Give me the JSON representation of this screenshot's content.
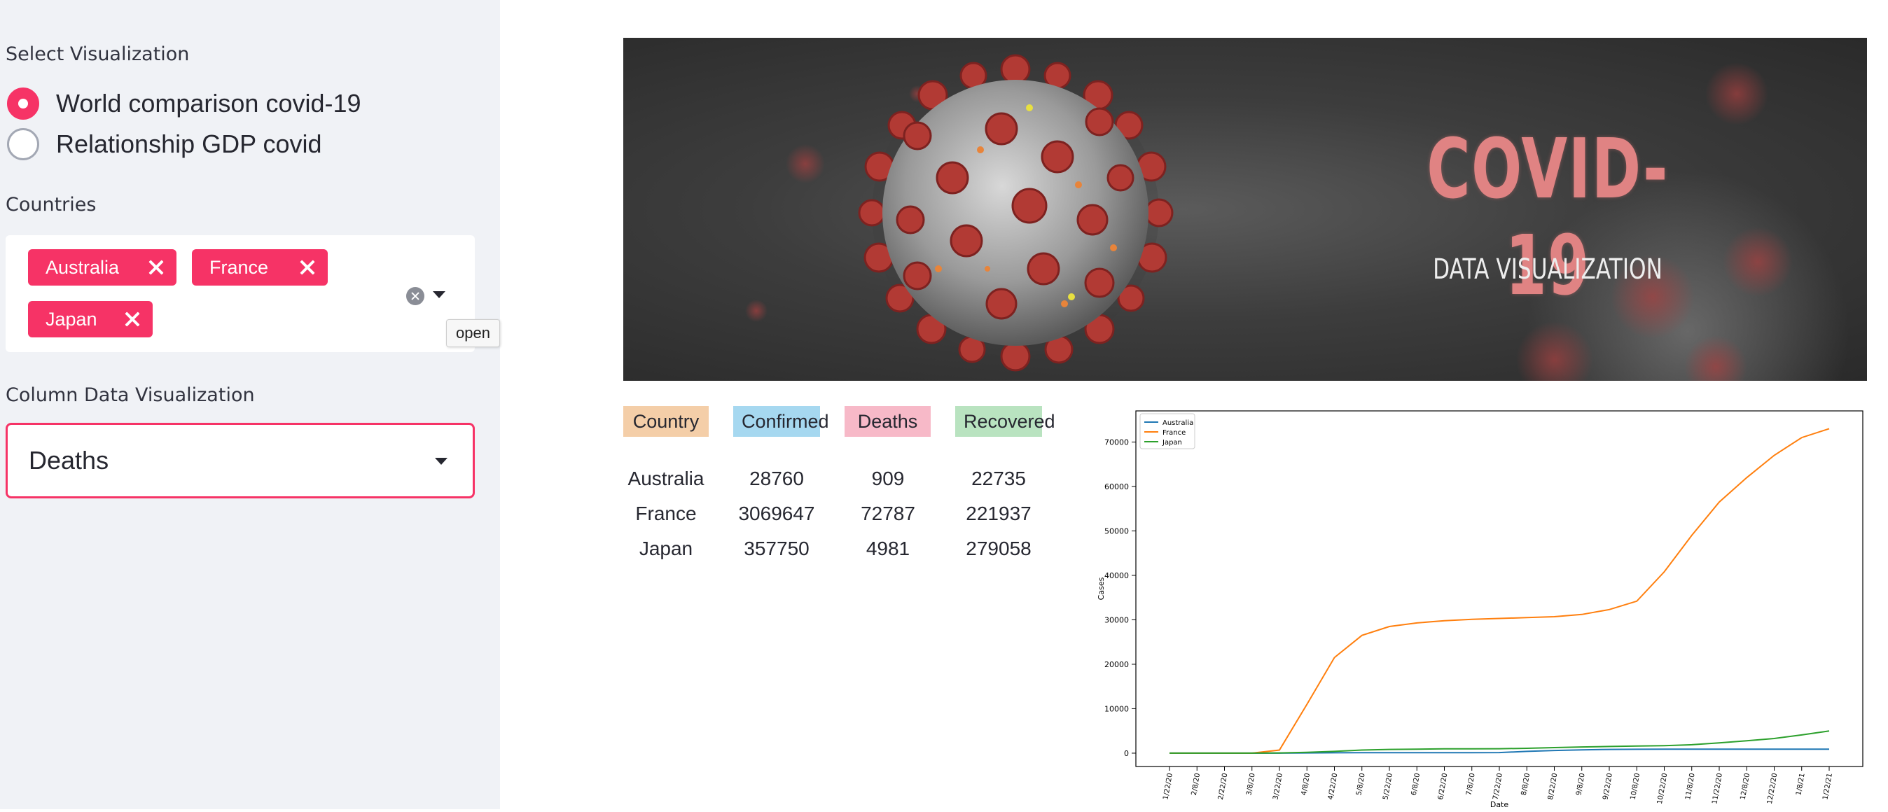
{
  "sidebar": {
    "visualization_label": "Select Visualization",
    "radio_options": [
      {
        "label": "World comparison covid-19",
        "selected": true
      },
      {
        "label": "Relationship GDP covid",
        "selected": false
      }
    ],
    "countries_label": "Countries",
    "countries_selected": [
      "Australia",
      "France",
      "Japan"
    ],
    "tooltip": "open",
    "column_label": "Column Data Visualization",
    "column_value": "Deaths"
  },
  "banner": {
    "title": "COVID-19",
    "subtitle": "DATA VISUALIZATION"
  },
  "table": {
    "headers": [
      {
        "label": "Country",
        "color": "#f4cea8"
      },
      {
        "label": "Confirmed",
        "color": "#a6d8f0"
      },
      {
        "label": "Deaths",
        "color": "#f7b9c8"
      },
      {
        "label": "Recovered",
        "color": "#b9e3c0"
      }
    ],
    "rows": [
      [
        "Australia",
        "28760",
        "909",
        "22735"
      ],
      [
        "France",
        "3069647",
        "72787",
        "221937"
      ],
      [
        "Japan",
        "357750",
        "4981",
        "279058"
      ]
    ]
  },
  "colors": {
    "accent": "#f63366",
    "sidebar_bg": "#f0f2f6",
    "series_australia": "#1f77b4",
    "series_france": "#ff7f0e",
    "series_japan": "#2ca02c"
  },
  "chart_data": {
    "type": "line",
    "xlabel": "Date",
    "ylabel": "Cases",
    "ylim": [
      -3000,
      77000
    ],
    "yticks": [
      0,
      10000,
      20000,
      30000,
      40000,
      50000,
      60000,
      70000
    ],
    "x": [
      "1/22/20",
      "2/8/20",
      "2/22/20",
      "3/8/20",
      "3/22/20",
      "4/8/20",
      "4/22/20",
      "5/8/20",
      "5/22/20",
      "6/8/20",
      "6/22/20",
      "7/8/20",
      "7/22/20",
      "8/8/20",
      "8/22/20",
      "9/8/20",
      "9/22/20",
      "10/8/20",
      "10/22/20",
      "11/8/20",
      "11/22/20",
      "12/8/20",
      "12/22/20",
      "1/8/21",
      "1/22/21"
    ],
    "legend_position": "top-left",
    "grid": false,
    "series": [
      {
        "name": "Australia",
        "color": "#1f77b4",
        "values": [
          0,
          0,
          0,
          0,
          10,
          60,
          80,
          100,
          100,
          100,
          100,
          110,
          140,
          400,
          600,
          750,
          850,
          870,
          900,
          905,
          907,
          908,
          908,
          909,
          909
        ]
      },
      {
        "name": "France",
        "color": "#ff7f0e",
        "values": [
          0,
          0,
          0,
          10,
          700,
          11000,
          21500,
          26500,
          28500,
          29300,
          29800,
          30100,
          30300,
          30500,
          30700,
          31200,
          32300,
          34200,
          40800,
          49000,
          56500,
          62000,
          67000,
          71000,
          73000
        ]
      },
      {
        "name": "Japan",
        "color": "#2ca02c",
        "values": [
          0,
          0,
          0,
          10,
          50,
          200,
          400,
          700,
          850,
          900,
          970,
          980,
          1000,
          1100,
          1250,
          1400,
          1500,
          1600,
          1700,
          1900,
          2300,
          2800,
          3300,
          4100,
          4981
        ]
      }
    ]
  }
}
